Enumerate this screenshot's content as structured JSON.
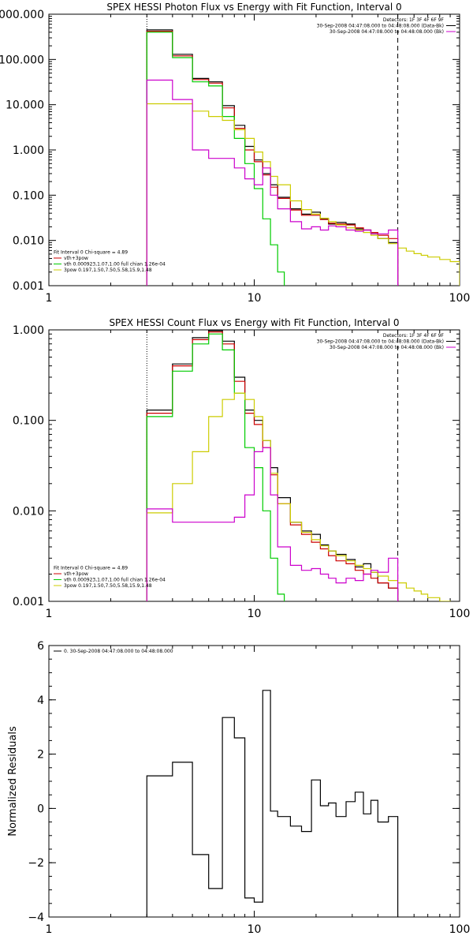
{
  "chart_data": [
    {
      "type": "line",
      "title": "SPEX HESSI Photon Flux vs Energy with Fit Function, Interval 0",
      "xscale": "log",
      "yscale": "log",
      "xlim": [
        1,
        100
      ],
      "ylim": [
        0.001,
        1000
      ],
      "xticks": [
        {
          "v": 1,
          "t": "1"
        },
        {
          "v": 10,
          "t": "10"
        },
        {
          "v": 100,
          "t": "100"
        }
      ],
      "yticks": [
        {
          "v": 1000,
          "t": "000.000"
        },
        {
          "v": 100,
          "t": "100.000"
        },
        {
          "v": 10,
          "t": "10.000"
        },
        {
          "v": 1,
          "t": "1.000"
        },
        {
          "v": 0.1,
          "t": "0.100"
        },
        {
          "v": 0.01,
          "t": "0.010"
        },
        {
          "v": 0.001,
          "t": "0.001"
        }
      ],
      "vlines": [
        {
          "x": 3,
          "style": "dotted"
        },
        {
          "x": 50,
          "style": "dashed"
        }
      ],
      "legend_top": {
        "placement": "top-right",
        "header": "Detectors: 1F 3F 4F 6F 9F",
        "entries": [
          {
            "text": "30-Sep-2008 04:47:08.000 to 04:48:08.000 (Data-Bk)",
            "color": "#000000"
          },
          {
            "text": "30-Sep-2008 04:47:08.000 to 04:48:08.000 (Bk)",
            "color": "#cc00cc"
          }
        ]
      },
      "legend_bottom": {
        "placement": "bottom-left",
        "header": "Fit Interval 0   Chi-square = 4.89",
        "entries": [
          {
            "text": "vth+3pow",
            "color": "#cc0000"
          },
          {
            "text": "vth 0.000923,1.07,1.00  full chian 1.26e-04",
            "color": "#00cc00"
          },
          {
            "text": "3pow 0.197,1.50,7.50,5.58,15.9,1.48",
            "color": "#cccc00"
          }
        ]
      },
      "series": [
        {
          "color": "#000000",
          "edges": [
            3,
            4,
            5,
            6,
            7,
            8,
            9,
            10,
            11,
            12,
            13,
            15,
            17,
            19,
            21,
            23,
            25,
            28,
            31,
            34,
            37,
            40,
            45,
            50
          ],
          "values": [
            450,
            130,
            38,
            32,
            9.5,
            3.5,
            1.2,
            0.6,
            0.3,
            0.17,
            0.09,
            0.05,
            0.038,
            0.042,
            0.03,
            0.023,
            0.025,
            0.023,
            0.018,
            0.017,
            0.014,
            0.011,
            0.009
          ]
        },
        {
          "color": "#cc0000",
          "edges": [
            3,
            4,
            5,
            6,
            7,
            8,
            9,
            10,
            11,
            12,
            13,
            15,
            17,
            19,
            21,
            23,
            25,
            28,
            31,
            34,
            37,
            40,
            45,
            50
          ],
          "values": [
            420,
            120,
            36,
            30,
            8.5,
            3.0,
            1.0,
            0.55,
            0.28,
            0.15,
            0.085,
            0.047,
            0.036,
            0.036,
            0.029,
            0.024,
            0.023,
            0.022,
            0.019,
            0.017,
            0.015,
            0.013,
            0.011
          ]
        },
        {
          "color": "#00cc00",
          "edges": [
            3,
            4,
            5,
            6,
            7,
            8,
            9,
            10,
            11,
            12,
            13,
            14,
            15
          ],
          "values": [
            400,
            110,
            32,
            26,
            5.5,
            1.8,
            0.5,
            0.14,
            0.03,
            0.008,
            0.002,
            0.0008
          ]
        },
        {
          "color": "#cccc00",
          "edges": [
            3,
            4,
            5,
            6,
            7,
            8,
            9,
            10,
            11,
            12,
            13,
            15,
            17,
            19,
            21,
            23,
            25,
            28,
            31,
            34,
            37,
            40,
            45,
            50,
            55,
            60,
            65,
            70,
            80,
            90,
            100
          ],
          "values": [
            10.5,
            10.5,
            7.2,
            5.5,
            4.5,
            2.8,
            1.8,
            0.9,
            0.55,
            0.26,
            0.17,
            0.075,
            0.048,
            0.038,
            0.031,
            0.026,
            0.022,
            0.019,
            0.017,
            0.015,
            0.013,
            0.011,
            0.0085,
            0.0068,
            0.0058,
            0.0051,
            0.0047,
            0.0043,
            0.0038,
            0.0034
          ]
        },
        {
          "color": "#cc00cc",
          "edges": [
            3,
            4,
            5,
            6,
            7,
            8,
            9,
            10,
            11,
            12,
            13,
            15,
            17,
            19,
            21,
            23,
            25,
            28,
            31,
            34,
            37,
            40,
            45,
            50
          ],
          "values": [
            35,
            13,
            1.0,
            0.65,
            0.65,
            0.4,
            0.23,
            0.17,
            0.4,
            0.1,
            0.05,
            0.026,
            0.018,
            0.02,
            0.017,
            0.021,
            0.02,
            0.017,
            0.016,
            0.017,
            0.014,
            0.014,
            0.017
          ]
        }
      ]
    },
    {
      "type": "line",
      "title": "SPEX HESSI Count Flux vs Energy with Fit Function, Interval 0",
      "xscale": "log",
      "yscale": "log",
      "xlim": [
        1,
        100
      ],
      "ylim": [
        0.001,
        1
      ],
      "xticks": [
        {
          "v": 1,
          "t": "1"
        },
        {
          "v": 10,
          "t": "10"
        },
        {
          "v": 100,
          "t": "100"
        }
      ],
      "yticks": [
        {
          "v": 1,
          "t": "1.000"
        },
        {
          "v": 0.1,
          "t": "0.100"
        },
        {
          "v": 0.01,
          "t": "0.010"
        },
        {
          "v": 0.001,
          "t": "0.001"
        }
      ],
      "vlines": [
        {
          "x": 3,
          "style": "dotted"
        },
        {
          "x": 50,
          "style": "dashed"
        }
      ],
      "legend_top": {
        "placement": "top-right",
        "header": "Detectors: 1F 3F 4F 6F 9F",
        "entries": [
          {
            "text": "30-Sep-2008 04:47:08.000 to 04:48:08.000 (Data-Bk)",
            "color": "#000000"
          },
          {
            "text": "30-Sep-2008 04:47:08.000 to 04:48:08.000 (Bk)",
            "color": "#cc00cc"
          }
        ]
      },
      "legend_bottom": {
        "placement": "bottom-left",
        "header": "Fit Interval 0   Chi-square = 4.89",
        "entries": [
          {
            "text": "vth+3pow",
            "color": "#cc0000"
          },
          {
            "text": "vth 0.000923,1.07,1.00  full chian 1.26e-04",
            "color": "#00cc00"
          },
          {
            "text": "3pow 0.197,1.50,7.50,5.58,15.9,1.48",
            "color": "#cccc00"
          }
        ]
      },
      "series": [
        {
          "color": "#000000",
          "edges": [
            3,
            4,
            5,
            6,
            7,
            8,
            9,
            10,
            11,
            12,
            13,
            15,
            17,
            19,
            21,
            23,
            25,
            28,
            31,
            34,
            37,
            40,
            45,
            50
          ],
          "values": [
            0.13,
            0.42,
            0.82,
            0.98,
            0.75,
            0.3,
            0.13,
            0.1,
            0.06,
            0.03,
            0.014,
            0.0075,
            0.006,
            0.0055,
            0.0042,
            0.0036,
            0.0033,
            0.0029,
            0.0024,
            0.0026,
            0.0021,
            0.0016,
            0.0014
          ]
        },
        {
          "color": "#cc0000",
          "edges": [
            3,
            4,
            5,
            6,
            7,
            8,
            9,
            10,
            11,
            12,
            13,
            15,
            17,
            19,
            21,
            23,
            25,
            28,
            31,
            34,
            37,
            40,
            45,
            50
          ],
          "values": [
            0.12,
            0.4,
            0.78,
            0.95,
            0.7,
            0.27,
            0.12,
            0.09,
            0.05,
            0.025,
            0.012,
            0.007,
            0.0055,
            0.0045,
            0.0038,
            0.0032,
            0.0028,
            0.0026,
            0.0022,
            0.002,
            0.0018,
            0.0016,
            0.0014
          ]
        },
        {
          "color": "#00cc00",
          "edges": [
            3,
            4,
            5,
            6,
            7,
            8,
            9,
            10,
            11,
            12,
            13,
            14,
            15
          ],
          "values": [
            0.11,
            0.35,
            0.7,
            0.9,
            0.6,
            0.2,
            0.05,
            0.03,
            0.01,
            0.003,
            0.0012,
            0.0008
          ]
        },
        {
          "color": "#cccc00",
          "edges": [
            3,
            4,
            5,
            6,
            7,
            8,
            9,
            10,
            11,
            12,
            13,
            15,
            17,
            19,
            21,
            23,
            25,
            28,
            31,
            34,
            37,
            40,
            45,
            50,
            55,
            60,
            65,
            70,
            80,
            90,
            100
          ],
          "values": [
            0.0095,
            0.02,
            0.045,
            0.11,
            0.17,
            0.2,
            0.17,
            0.11,
            0.06,
            0.026,
            0.012,
            0.0075,
            0.0058,
            0.0048,
            0.0041,
            0.0036,
            0.0032,
            0.0028,
            0.0025,
            0.0023,
            0.0021,
            0.0019,
            0.0017,
            0.0016,
            0.0014,
            0.0013,
            0.0012,
            0.0011,
            0.001,
            0.0009
          ]
        },
        {
          "color": "#cc00cc",
          "edges": [
            3,
            4,
            5,
            6,
            7,
            8,
            9,
            10,
            11,
            12,
            13,
            15,
            17,
            19,
            21,
            23,
            25,
            28,
            31,
            34,
            37,
            40,
            45,
            50
          ],
          "values": [
            0.0105,
            0.0075,
            0.0075,
            0.0075,
            0.0075,
            0.0085,
            0.015,
            0.045,
            0.05,
            0.015,
            0.004,
            0.0025,
            0.0022,
            0.0023,
            0.002,
            0.0018,
            0.0016,
            0.0018,
            0.0017,
            0.002,
            0.0022,
            0.0021,
            0.003
          ]
        }
      ]
    },
    {
      "type": "line",
      "title": "",
      "ylabel": "Normalized Residuals",
      "xscale": "log",
      "yscale": "linear",
      "xlim": [
        1,
        100
      ],
      "ylim": [
        -4,
        6
      ],
      "xticks": [
        {
          "v": 1,
          "t": "1"
        },
        {
          "v": 10,
          "t": "10"
        },
        {
          "v": 100,
          "t": "100"
        }
      ],
      "yticks": [
        {
          "v": 6,
          "t": "6"
        },
        {
          "v": 4,
          "t": "4"
        },
        {
          "v": 2,
          "t": "2"
        },
        {
          "v": 0,
          "t": "0"
        },
        {
          "v": -2,
          "t": "−2"
        },
        {
          "v": -4,
          "t": "−4"
        }
      ],
      "legend_top": {
        "placement": "top-left",
        "header": "",
        "entries": [
          {
            "text": "0. 30-Sep-2008 04:47:08.000 to 04:48:08.000",
            "color": "#000000"
          }
        ]
      },
      "series": [
        {
          "color": "#000000",
          "edges": [
            3,
            4,
            5,
            6,
            7,
            8,
            9,
            10,
            11,
            12,
            13,
            15,
            17,
            19,
            21,
            23,
            25,
            28,
            31,
            34,
            37,
            40,
            45,
            50
          ],
          "values": [
            1.2,
            1.7,
            -1.7,
            -2.95,
            3.35,
            2.6,
            -3.3,
            -3.45,
            4.35,
            -0.1,
            -0.3,
            -0.65,
            -0.85,
            1.05,
            0.1,
            0.2,
            -0.3,
            0.25,
            0.6,
            -0.2,
            0.3,
            -0.5,
            -0.3
          ]
        }
      ]
    }
  ]
}
